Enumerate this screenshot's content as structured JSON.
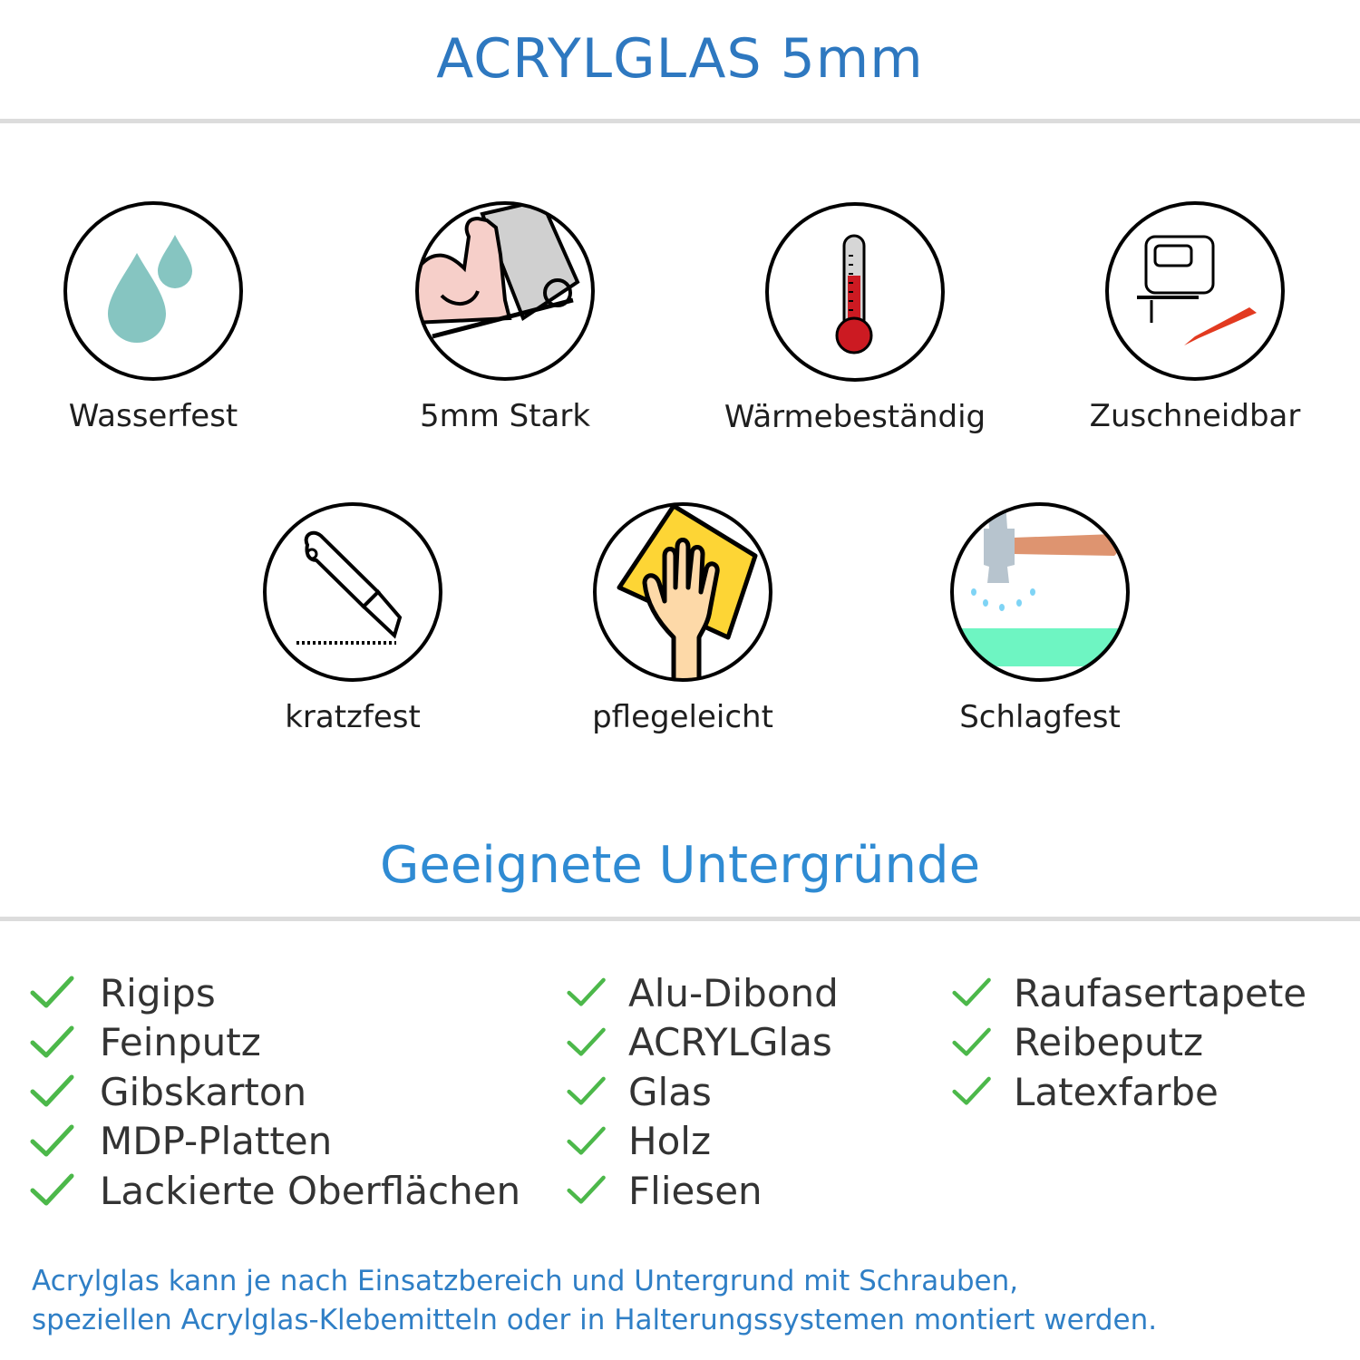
{
  "header": {
    "title": "ACRYLGLAS 5mm"
  },
  "features": [
    {
      "label": "Wasserfest",
      "icon": "water-drops-icon"
    },
    {
      "label": "5mm Stark",
      "icon": "strong-arm-icon"
    },
    {
      "label": "Wärmebeständig",
      "icon": "thermometer-icon"
    },
    {
      "label": "Zuschneidbar",
      "icon": "jigsaw-knife-icon"
    },
    {
      "label": "kratzfest",
      "icon": "cutter-knife-icon"
    },
    {
      "label": "pflegeleicht",
      "icon": "cleaning-hand-icon"
    },
    {
      "label": "Schlagfest",
      "icon": "hammer-icon"
    }
  ],
  "surfaces": {
    "title": "Geeignete Untergründe",
    "columns": [
      [
        "Rigips",
        "Feinputz",
        "Gibskarton",
        "MDP-Platten",
        "Lackierte Oberflächen"
      ],
      [
        "Alu-Dibond",
        "ACRYLGlas",
        "Glas",
        "Holz",
        "Fliesen"
      ],
      [
        "Raufasertapete",
        "Reibeputz",
        "Latexfarbe"
      ]
    ]
  },
  "note": {
    "line1": "Acrylglas kann je nach Einsatzbereich und Untergrund mit Schrauben,",
    "line2": "speziellen Acrylglas-Klebemitteln oder in Halterungssystemen montiert werden."
  },
  "colors": {
    "title": "#2e78c0",
    "subtitle": "#2f8bd3",
    "check": "#4cb84a",
    "note": "#2f7fc6",
    "divider": "#dcdcdc"
  }
}
